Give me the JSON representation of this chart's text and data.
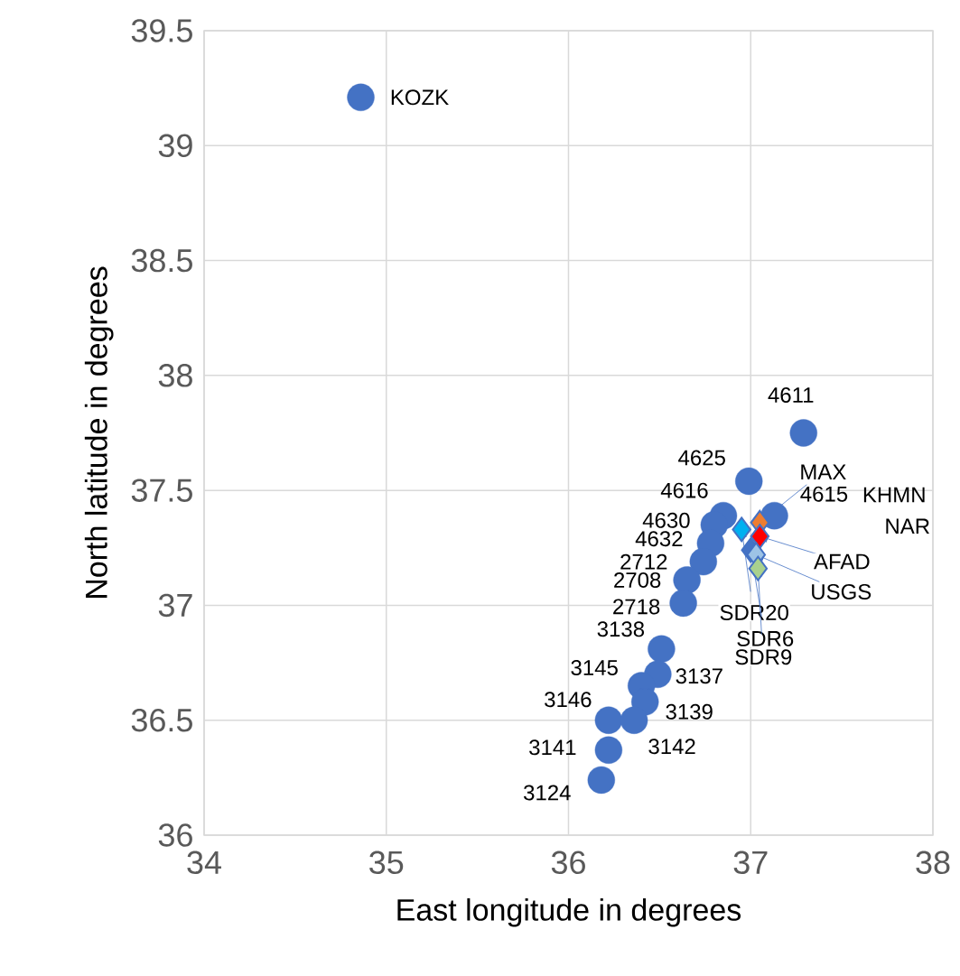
{
  "chart_data": {
    "type": "scatter",
    "xlabel": "East longitude in degrees",
    "ylabel": "North latitude in degrees",
    "xlim": [
      34,
      38
    ],
    "ylim": [
      36,
      39.5
    ],
    "xticks": [
      34,
      35,
      36,
      37,
      38
    ],
    "yticks": [
      36,
      36.5,
      37,
      37.5,
      38,
      38.5,
      39,
      39.5
    ],
    "grid": true,
    "series": [
      {
        "color": "#4472c4",
        "marker": "circle",
        "x": [
          34.86,
          37.29,
          36.99,
          37.13,
          36.85,
          36.8,
          36.78,
          36.74,
          36.65,
          36.63,
          36.51,
          36.49,
          36.4,
          36.42,
          36.22,
          36.36,
          36.22,
          36.18
        ],
        "values": [
          39.21,
          37.75,
          37.54,
          37.39,
          37.39,
          37.35,
          37.27,
          37.19,
          37.11,
          37.01,
          36.81,
          36.7,
          36.65,
          36.58,
          36.5,
          36.5,
          36.37,
          36.24
        ]
      },
      {
        "marker": "diamond",
        "colors": [
          "#ed7d31",
          "#ff0000",
          "#00b0f0",
          "#4472c4",
          "#9dc3e6",
          "#a9d18e"
        ],
        "x": [
          37.05,
          37.05,
          36.95,
          37.0,
          37.03,
          37.04
        ],
        "values": [
          37.36,
          37.3,
          37.33,
          37.24,
          37.22,
          37.16
        ]
      }
    ],
    "annotations": [
      {
        "text": "KOZK",
        "x": 34.86,
        "y": 39.21
      },
      {
        "text": "4611",
        "x": 37.29,
        "y": 37.75
      },
      {
        "text": "4625",
        "x": 36.99,
        "y": 37.54
      },
      {
        "text": "4615",
        "x": 37.13,
        "y": 37.39
      },
      "KHMN",
      "NAR",
      {
        "text": "4616",
        "x": 36.85,
        "y": 37.39
      },
      {
        "text": "4630",
        "x": 36.8,
        "y": 37.35
      },
      {
        "text": "4632",
        "x": 36.78,
        "y": 37.27
      },
      {
        "text": "2712",
        "x": 36.74,
        "y": 37.19
      },
      {
        "text": "2708",
        "x": 36.65,
        "y": 37.11
      },
      {
        "text": "2718",
        "x": 36.63,
        "y": 37.01
      },
      {
        "text": "3138",
        "x": 36.51,
        "y": 36.81
      },
      {
        "text": "3137",
        "x": 36.49,
        "y": 36.7
      },
      {
        "text": "3145",
        "x": 36.4,
        "y": 36.65
      },
      {
        "text": "3139",
        "x": 36.42,
        "y": 36.58
      },
      {
        "text": "3146",
        "x": 36.22,
        "y": 36.5
      },
      {
        "text": "3142",
        "x": 36.36,
        "y": 36.5
      },
      {
        "text": "3141",
        "x": 36.22,
        "y": 36.37
      },
      {
        "text": "3124",
        "x": 36.18,
        "y": 36.24
      },
      {
        "text": "MAX",
        "x": 37.05,
        "y": 37.36
      },
      {
        "text": "AFAD",
        "x": 37.05,
        "y": 37.3
      },
      {
        "text": "SDR20",
        "x": 36.95,
        "y": 37.33
      },
      {
        "text": "SDR6",
        "x": 37.0,
        "y": 37.24
      },
      {
        "text": "USGS",
        "x": 37.03,
        "y": 37.22
      },
      {
        "text": "SDR9",
        "x": 37.04,
        "y": 37.16
      }
    ]
  }
}
